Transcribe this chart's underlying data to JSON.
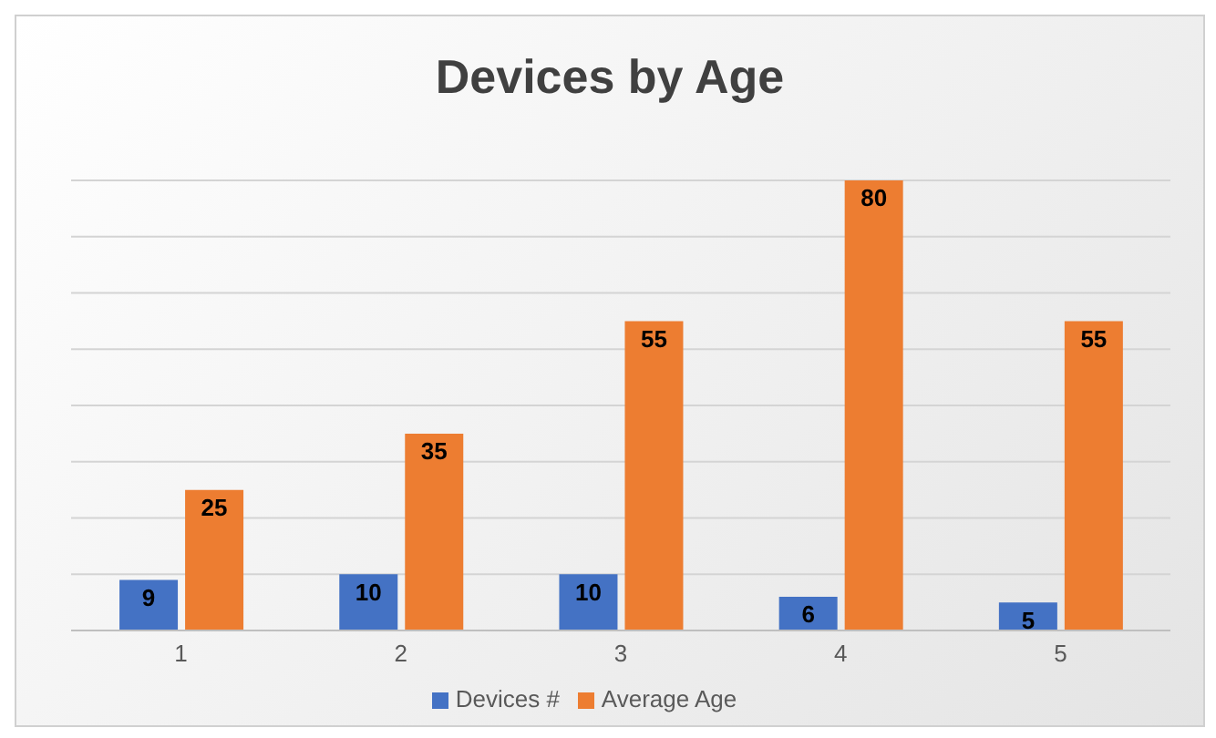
{
  "chart_data": {
    "type": "bar",
    "title": "Devices by Age",
    "categories": [
      "1",
      "2",
      "3",
      "4",
      "5"
    ],
    "series": [
      {
        "name": "Devices #",
        "color": "#4472c4",
        "values": [
          9,
          10,
          10,
          6,
          5
        ]
      },
      {
        "name": "Average Age",
        "color": "#ed7d31",
        "values": [
          25,
          35,
          55,
          80,
          55
        ]
      }
    ],
    "ylim": [
      0,
      80
    ],
    "yticks": [
      {
        "value": 0,
        "label": null
      },
      {
        "value": 10,
        "label": null
      },
      {
        "value": 20,
        "label": null
      },
      {
        "value": 30,
        "label": null
      },
      {
        "value": 40,
        "label": null
      },
      {
        "value": 50,
        "label": null
      },
      {
        "value": 60,
        "label": null
      },
      {
        "value": 70,
        "label": null
      },
      {
        "value": 80,
        "label": null
      }
    ],
    "tick_labels": "x",
    "grid": "y",
    "legend": "bottom",
    "data_labels": true
  }
}
